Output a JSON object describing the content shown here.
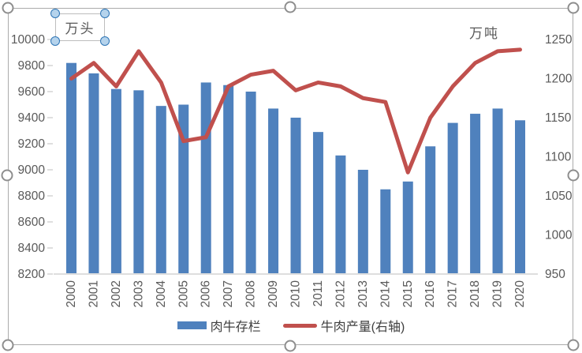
{
  "chart": {
    "selection": "chart-object-selected",
    "textbox_title": "万头"
  },
  "chart_data": {
    "type": "bar+line combo, dual axis",
    "categories": [
      "2000",
      "2001",
      "2002",
      "2003",
      "2004",
      "2005",
      "2006",
      "2007",
      "2008",
      "2009",
      "2010",
      "2011",
      "2012",
      "2013",
      "2014",
      "2015",
      "2016",
      "2017",
      "2018",
      "2019",
      "2020"
    ],
    "series": [
      {
        "name": "肉牛存栏",
        "type": "bar",
        "axis": "left",
        "color": "#4f81bd",
        "values": [
          9820,
          9740,
          9620,
          9610,
          9490,
          9500,
          9670,
          9650,
          9600,
          9470,
          9400,
          9290,
          9110,
          9000,
          8850,
          8910,
          9180,
          9360,
          9430,
          9470,
          9380
        ]
      },
      {
        "name": "牛肉产量(右轴)",
        "type": "line",
        "axis": "right",
        "color": "#c0504d",
        "values": [
          1200,
          1220,
          1190,
          1235,
          1195,
          1120,
          1125,
          1190,
          1205,
          1210,
          1185,
          1195,
          1190,
          1175,
          1170,
          1080,
          1150,
          1190,
          1220,
          1235,
          1237
        ]
      }
    ],
    "left_axis": {
      "title": "万头",
      "min": 8200,
      "max": 10000,
      "step": 200,
      "ticks": [
        "10000",
        "9800",
        "9600",
        "9400",
        "9200",
        "9000",
        "8800",
        "8600",
        "8400",
        "8200"
      ]
    },
    "right_axis": {
      "title": "万吨",
      "min": 950,
      "max": 1250,
      "step": 50,
      "ticks": [
        "1250",
        "1200",
        "1150",
        "1100",
        "1050",
        "1000",
        "950"
      ]
    },
    "grid": "off",
    "legend_position": "bottom",
    "x_tick_rotation": -90
  }
}
